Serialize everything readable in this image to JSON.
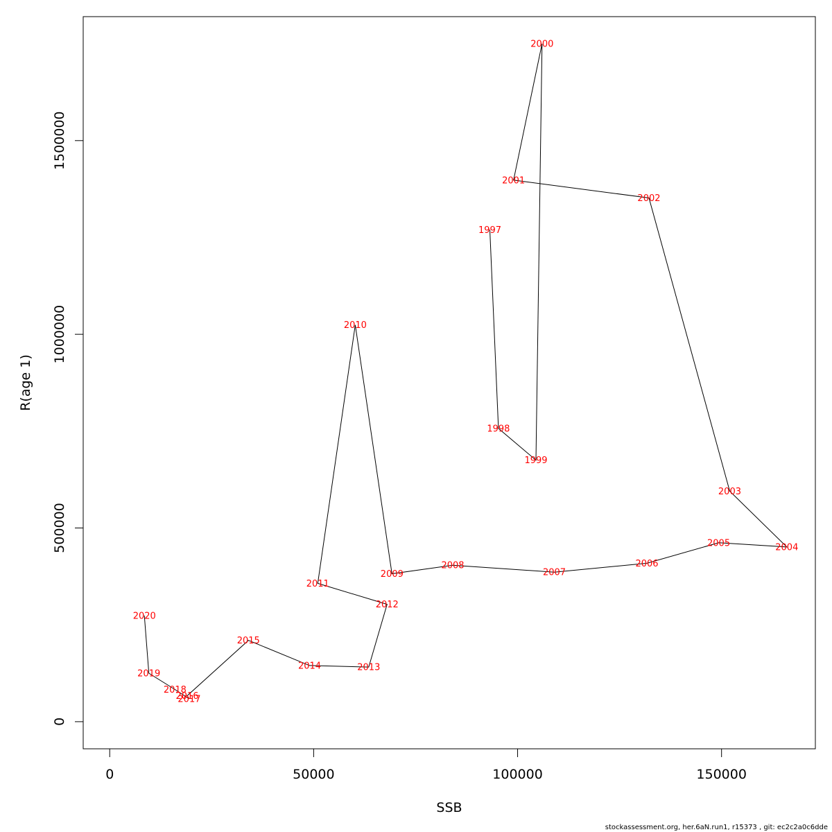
{
  "chart_data": {
    "type": "line",
    "xlabel": "SSB",
    "ylabel": "R(age 1)",
    "xlim": [
      -6500,
      173000
    ],
    "ylim": [
      -70000,
      1820000
    ],
    "x_ticks": [
      0,
      50000,
      100000,
      150000
    ],
    "x_tick_labels": [
      "0",
      "50000",
      "100000",
      "150000"
    ],
    "y_ticks": [
      0,
      500000,
      1000000,
      1500000
    ],
    "y_tick_labels": [
      "0",
      "500000",
      "1000000",
      "1500000"
    ],
    "grid": false,
    "line_color": "#000000",
    "label_color": "#ff0000",
    "points": [
      {
        "year": "1997",
        "x": 93200,
        "y": 1270000
      },
      {
        "year": "1998",
        "x": 95300,
        "y": 757000
      },
      {
        "year": "1999",
        "x": 104500,
        "y": 675000
      },
      {
        "year": "2000",
        "x": 106000,
        "y": 1750000
      },
      {
        "year": "2001",
        "x": 99000,
        "y": 1398000
      },
      {
        "year": "2002",
        "x": 132200,
        "y": 1352000
      },
      {
        "year": "2003",
        "x": 152000,
        "y": 595000
      },
      {
        "year": "2004",
        "x": 166000,
        "y": 451000
      },
      {
        "year": "2005",
        "x": 149300,
        "y": 462000
      },
      {
        "year": "2006",
        "x": 131700,
        "y": 409000
      },
      {
        "year": "2007",
        "x": 109000,
        "y": 386000
      },
      {
        "year": "2008",
        "x": 84100,
        "y": 404000
      },
      {
        "year": "2009",
        "x": 69200,
        "y": 382000
      },
      {
        "year": "2010",
        "x": 60200,
        "y": 1024000
      },
      {
        "year": "2011",
        "x": 51000,
        "y": 357000
      },
      {
        "year": "2012",
        "x": 68000,
        "y": 303000
      },
      {
        "year": "2013",
        "x": 63500,
        "y": 141000
      },
      {
        "year": "2014",
        "x": 49000,
        "y": 145000
      },
      {
        "year": "2015",
        "x": 34000,
        "y": 210000
      },
      {
        "year": "2016",
        "x": 19000,
        "y": 67000
      },
      {
        "year": "2017",
        "x": 19500,
        "y": 59000
      },
      {
        "year": "2018",
        "x": 16000,
        "y": 83000
      },
      {
        "year": "2019",
        "x": 9600,
        "y": 125000
      },
      {
        "year": "2020",
        "x": 8500,
        "y": 274000
      }
    ]
  },
  "footer_text": "stockassessment.org, her.6aN.run1, r15373 , git: ec2c2a0c6dde"
}
